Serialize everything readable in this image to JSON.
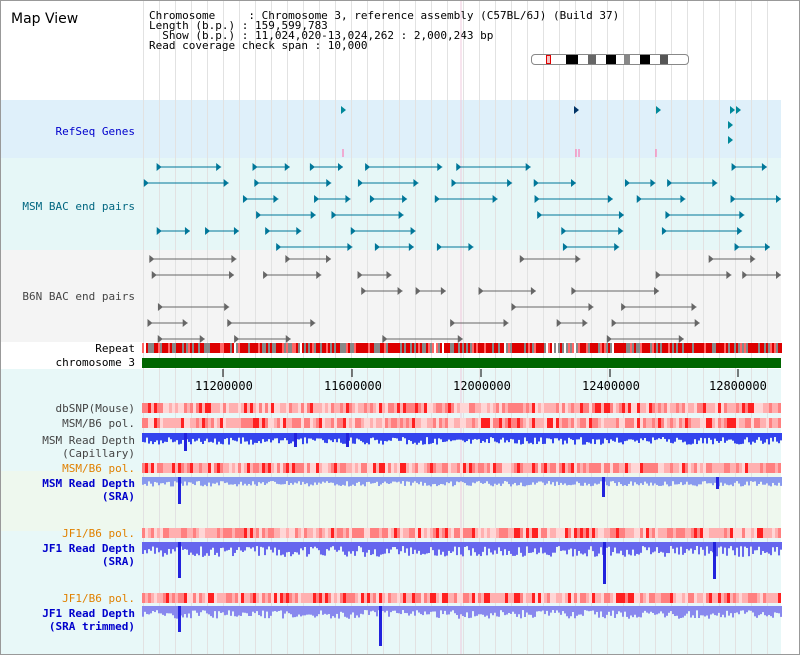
{
  "page": {
    "title": "Map View"
  },
  "info": {
    "chromosome_line": "Chromosome     : Chromosome 3, reference assembly (C57BL/6J) (Build 37)",
    "length_line": "Length (b.p.) : 159,599,783",
    "show_line": "  Show (b.p.) : 11,024,020-13,024,262 : 2,000,243 bp",
    "span_line": "Read coverage check span : 10,000"
  },
  "tracks": {
    "refseq": "RefSeq Genes",
    "msm_bac": "MSM BAC end pairs",
    "b6n_bac": "B6N BAC end pairs",
    "repeat": "Repeat",
    "chromosome": "chromosome 3",
    "dbsnp": "dbSNP(Mouse)",
    "msm_b6_pol": "MSM/B6 pol.",
    "msm_read_depth_cap": "MSM Read Depth\n(Capillary)",
    "msm_b6_pol_sra": "MSM/B6 pol.",
    "msm_read_depth_sra": "MSM Read Depth\n(SRA)",
    "jf1_b6_pol": "JF1/B6 pol.",
    "jf1_read_depth_sra": "JF1 Read Depth\n(SRA)",
    "jf1_b6_pol_2": "JF1/B6 pol.",
    "jf1_read_depth_trim": "JF1 Read Depth\n(SRA trimmed)"
  },
  "axis": {
    "labels": [
      "11200000",
      "11600000",
      "12000000",
      "12400000",
      "12800000"
    ]
  },
  "colors": {
    "blue_label": "#0000cc",
    "teal_label": "#006680",
    "gray_label": "#444444",
    "orange_label": "#e08000",
    "chromosome_bar": "#006600"
  }
}
